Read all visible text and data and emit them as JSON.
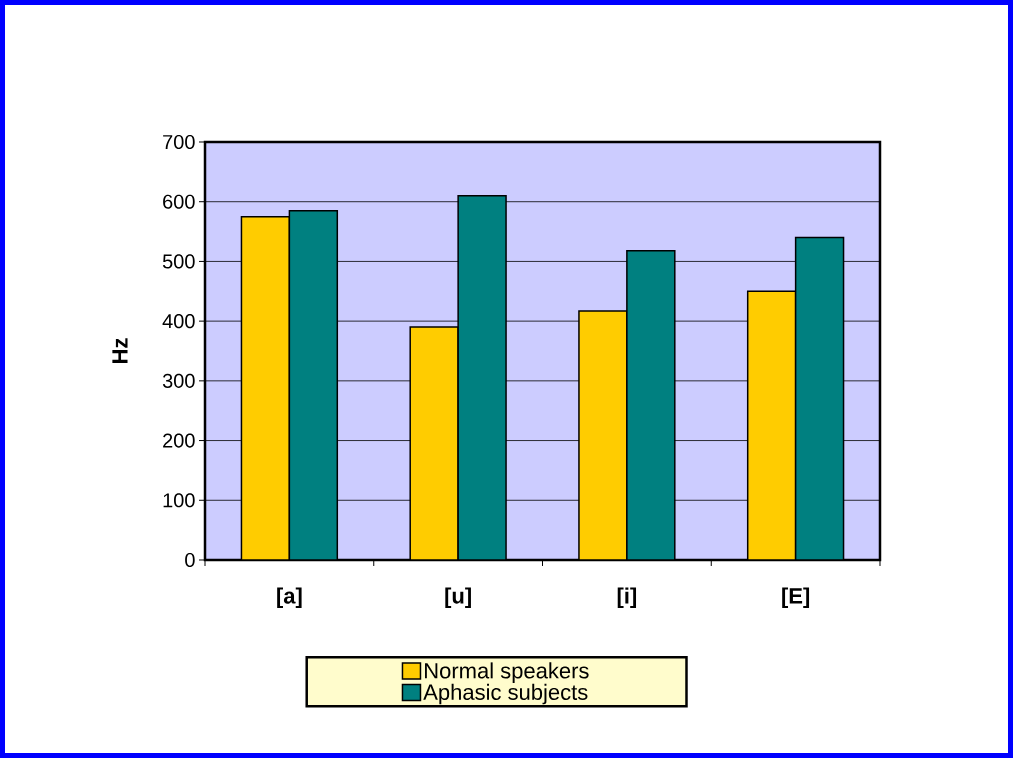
{
  "chart_data": {
    "type": "bar",
    "ylabel": "Hz",
    "categories": [
      "[a]",
      "[u]",
      "[i]",
      "[E]"
    ],
    "series": [
      {
        "name": "Normal speakers",
        "color": "#ffcc00",
        "values": [
          575,
          390,
          417,
          450
        ]
      },
      {
        "name": "Aphasic subjects",
        "color": "#008080",
        "values": [
          585,
          610,
          518,
          540
        ]
      }
    ],
    "ylim": [
      0,
      700
    ],
    "yticks": [
      0,
      100,
      200,
      300,
      400,
      500,
      600,
      700
    ],
    "grid": "y",
    "legend": "bottom"
  }
}
